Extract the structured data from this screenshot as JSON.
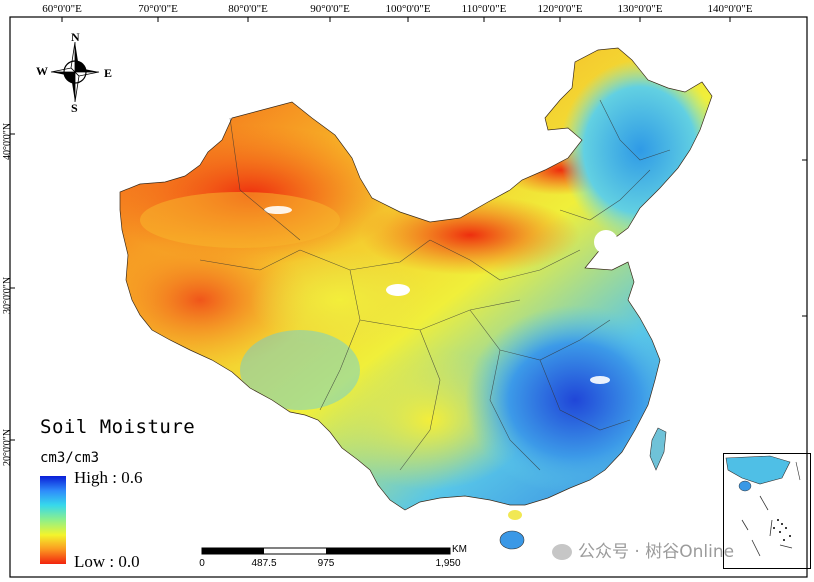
{
  "map": {
    "longitude_labels": [
      "60°0'0\"E",
      "70°0'0\"E",
      "80°0'0\"E",
      "90°0'0\"E",
      "100°0'0\"E",
      "110°0'0\"E",
      "120°0'0\"E",
      "130°0'0\"E",
      "140°0'0\"E"
    ],
    "latitude_labels": [
      "40°0'0\"N",
      "30°0'0\"N",
      "20°0'0\"N"
    ],
    "compass": {
      "north": "N",
      "south": "S",
      "east": "E",
      "west": "W"
    },
    "legend": {
      "title": "Soil Moisture",
      "unit": "cm3/cm3",
      "high": "High : 0.6",
      "low": "Low : 0.0",
      "colors": [
        "#0a1ed8",
        "#2f8dfb",
        "#36d8ec",
        "#8ef08a",
        "#f3f42c",
        "#fb9b21",
        "#f2230e"
      ]
    },
    "scale_bar": {
      "unit": "KM",
      "ticks": [
        "0",
        "487.5",
        "975",
        "1,950"
      ]
    },
    "watermark": "公众号 · 树谷Online"
  }
}
